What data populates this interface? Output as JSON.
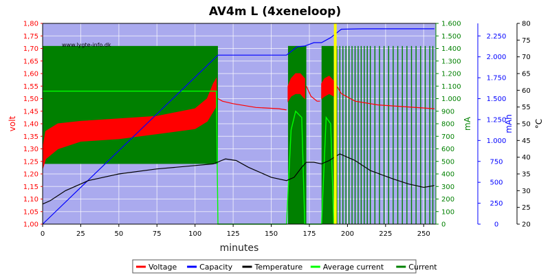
{
  "chart_data": {
    "type": "line",
    "title": "AV4m L (4xeneloop)",
    "watermark": "www.lygte-info.dk",
    "xlabel": "minutes",
    "x_ticks": [
      0,
      25,
      50,
      75,
      100,
      125,
      150,
      175,
      200,
      225,
      250
    ],
    "xlim": [
      0,
      258
    ],
    "y_axes": {
      "volt": {
        "label": "volt",
        "color": "#ff0000",
        "lim": [
          1.0,
          1.8
        ],
        "ticks": [
          "1,00",
          "1,05",
          "1,10",
          "1,15",
          "1,20",
          "1,25",
          "1,30",
          "1,35",
          "1,40",
          "1,45",
          "1,50",
          "1,55",
          "1,60",
          "1,65",
          "1,70",
          "1,75",
          "1,80"
        ]
      },
      "ma": {
        "label": "mA",
        "color": "#008000",
        "lim": [
          0,
          1600
        ],
        "ticks": [
          "0",
          "100",
          "200",
          "300",
          "400",
          "500",
          "600",
          "700",
          "800",
          "900",
          "1.000",
          "1.100",
          "1.200",
          "1.300",
          "1.400",
          "1.500",
          "1.600"
        ]
      },
      "mah": {
        "label": "mAh",
        "color": "#0000ff",
        "lim": [
          0,
          2400
        ],
        "ticks": [
          "0",
          "250",
          "500",
          "750",
          "1.000",
          "1.250",
          "1.500",
          "1.750",
          "2.000",
          "2.250"
        ]
      },
      "temp": {
        "label": "°C",
        "color": "#000000",
        "lim": [
          20,
          80
        ],
        "ticks": [
          "20",
          "25",
          "30",
          "35",
          "40",
          "45",
          "50",
          "55",
          "60",
          "65",
          "70",
          "75",
          "80"
        ]
      }
    },
    "grid": true,
    "background": "#aaaaee",
    "marker": {
      "x": 192,
      "color": "#ffff00"
    },
    "legend": {
      "placement": "bottom",
      "entries": [
        {
          "label": "Voltage",
          "color": "#ff0000"
        },
        {
          "label": "Capacity",
          "color": "#0000ff"
        },
        {
          "label": "Temperature",
          "color": "#000000"
        },
        {
          "label": "Average current",
          "color": "#00ff00"
        },
        {
          "label": "Current",
          "color": "#008000"
        }
      ]
    },
    "series": [
      {
        "name": "Voltage",
        "axis": "volt",
        "upper": [
          [
            0,
            1.3
          ],
          [
            2,
            1.37
          ],
          [
            10,
            1.4
          ],
          [
            25,
            1.41
          ],
          [
            50,
            1.42
          ],
          [
            75,
            1.43
          ],
          [
            100,
            1.46
          ],
          [
            108,
            1.5
          ],
          [
            112,
            1.56
          ],
          [
            114,
            1.58
          ]
        ],
        "lower": [
          [
            0,
            1.22
          ],
          [
            2,
            1.26
          ],
          [
            10,
            1.3
          ],
          [
            25,
            1.33
          ],
          [
            50,
            1.34
          ],
          [
            75,
            1.36
          ],
          [
            100,
            1.38
          ],
          [
            108,
            1.41
          ],
          [
            112,
            1.45
          ],
          [
            114,
            1.47
          ]
        ],
        "rest": [
          [
            115,
            1.5
          ],
          [
            118,
            1.49
          ],
          [
            125,
            1.48
          ],
          [
            140,
            1.465
          ],
          [
            155,
            1.46
          ],
          [
            160,
            1.455
          ]
        ],
        "bursts": [
          {
            "upper": [
              [
                161,
                1.55
              ],
              [
                163,
                1.58
              ],
              [
                166,
                1.6
              ],
              [
                169,
                1.6
              ],
              [
                172,
                1.58
              ]
            ],
            "lower": [
              [
                161,
                1.49
              ],
              [
                163,
                1.51
              ],
              [
                166,
                1.52
              ],
              [
                169,
                1.52
              ],
              [
                172,
                1.5
              ]
            ]
          },
          {
            "upper": [
              [
                183,
                1.56
              ],
              [
                185,
                1.58
              ],
              [
                188,
                1.59
              ],
              [
                191,
                1.57
              ]
            ],
            "lower": [
              [
                183,
                1.5
              ],
              [
                185,
                1.51
              ],
              [
                188,
                1.52
              ],
              [
                191,
                1.51
              ]
            ]
          }
        ],
        "rests": [
          [
            [
              173,
              1.55
            ],
            [
              176,
              1.51
            ],
            [
              180,
              1.49
            ],
            [
              182,
              1.49
            ]
          ],
          [
            [
              192,
              1.56
            ],
            [
              196,
              1.52
            ],
            [
              205,
              1.49
            ],
            [
              220,
              1.475
            ],
            [
              257,
              1.46
            ]
          ]
        ]
      },
      {
        "name": "Capacity",
        "axis": "mah",
        "x": [
          0,
          115,
          160,
          167,
          172,
          178,
          183,
          189,
          196,
          210,
          257
        ],
        "y": [
          0,
          2020,
          2020,
          2120,
          2130,
          2170,
          2170,
          2230,
          2330,
          2335,
          2335
        ]
      },
      {
        "name": "Temperature",
        "axis": "temp",
        "x": [
          0,
          5,
          15,
          30,
          50,
          75,
          100,
          112,
          120,
          127,
          135,
          150,
          160,
          165,
          170,
          173,
          178,
          183,
          188,
          195,
          205,
          215,
          230,
          240,
          250,
          257
        ],
        "y": [
          26,
          27,
          30,
          33,
          35,
          36.5,
          37.5,
          38,
          39.5,
          39,
          37,
          34,
          33,
          34,
          37,
          38.5,
          38.5,
          38,
          39,
          41,
          39,
          36,
          33.5,
          32,
          31,
          31.5
        ]
      },
      {
        "name": "Average current",
        "axis": "ma",
        "x": [
          0,
          114,
          115,
          160,
          163,
          166,
          170,
          172,
          183,
          186,
          189,
          191
        ],
        "y": [
          1060,
          1060,
          0,
          0,
          750,
          900,
          850,
          0,
          0,
          850,
          800,
          0
        ]
      },
      {
        "name": "Current",
        "axis": "ma",
        "blocks": [
          [
            0,
            115,
            480,
            1420
          ],
          [
            161,
            173,
            0,
            1420
          ],
          [
            183,
            191,
            0,
            1420
          ]
        ],
        "pulses_x": [
          193,
          195,
          197,
          199,
          201,
          203,
          205,
          207,
          209,
          211,
          213,
          215,
          218,
          221,
          224,
          227,
          230,
          233,
          236,
          239,
          242,
          245,
          248,
          251,
          254,
          256
        ],
        "pulse_high": 1420
      }
    ]
  }
}
